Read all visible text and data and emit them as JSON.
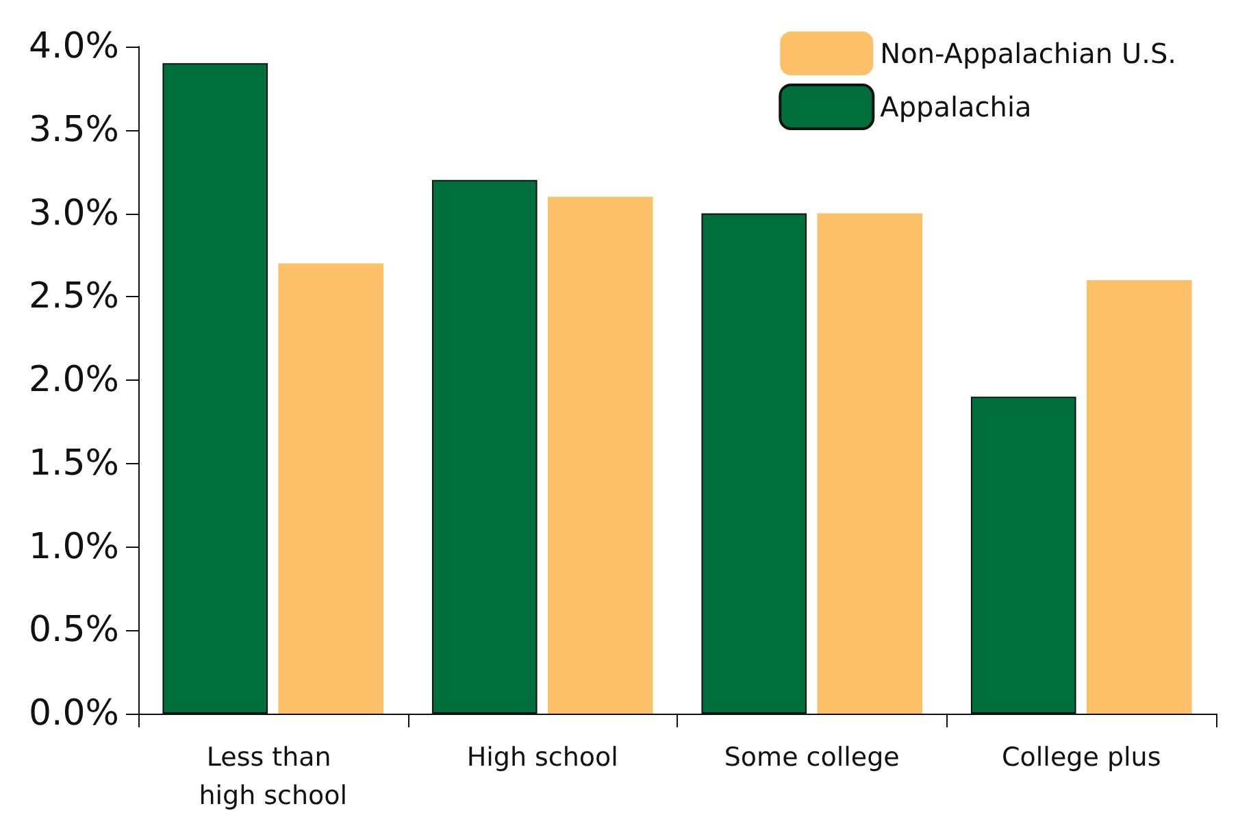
{
  "chart_data": {
    "type": "bar",
    "categories": [
      "Less than high school",
      "High school",
      "Some college",
      "College plus"
    ],
    "series": [
      {
        "name": "Appalachia",
        "color": "#006f3c",
        "values": [
          3.9,
          3.2,
          3.0,
          1.9
        ]
      },
      {
        "name": "Non-Appalachian U.S.",
        "color": "#fbc068",
        "values": [
          2.7,
          3.1,
          3.0,
          2.6
        ]
      }
    ],
    "ylim": [
      0,
      4
    ],
    "yticks": [
      {
        "value": 0,
        "label": "0.0%"
      },
      {
        "value": 0.5,
        "label": "0.5%"
      },
      {
        "value": 1,
        "label": "1.0%"
      },
      {
        "value": 1.5,
        "label": "1.5%"
      },
      {
        "value": 2,
        "label": "2.0%"
      },
      {
        "value": 2.5,
        "label": "2.5%"
      },
      {
        "value": 3,
        "label": "3.0%"
      },
      {
        "value": 3.5,
        "label": "3.5%"
      },
      {
        "value": 4,
        "label": "4.0%"
      }
    ],
    "grid": false,
    "legend": "top right"
  }
}
